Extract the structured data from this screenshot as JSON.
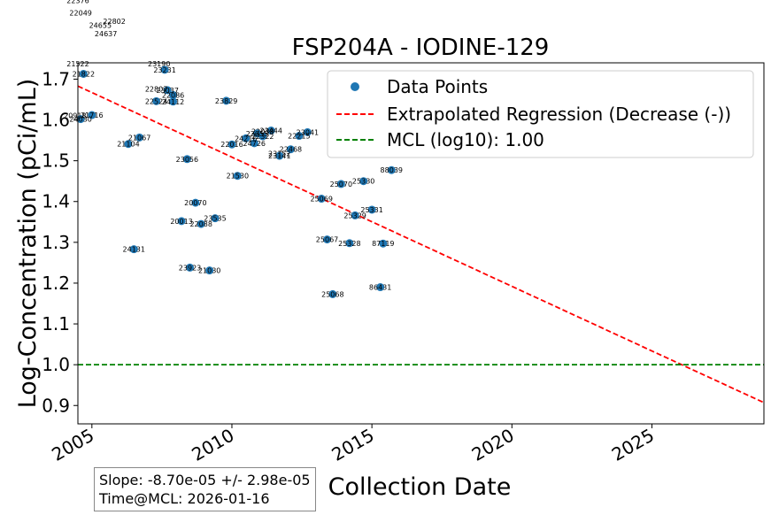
{
  "chart_data": {
    "type": "scatter",
    "title": "FSP204A - IODINE-129",
    "xlabel": "Collection Date",
    "ylabel": "Log-Concentration (pCi/mL)",
    "xlim": [
      2004.5,
      2029.0
    ],
    "ylim": [
      0.855,
      1.74
    ],
    "x_ticks": [
      2005,
      2010,
      2015,
      2020,
      2025
    ],
    "x_tick_labels": [
      "2005",
      "2010",
      "2015",
      "2020",
      "2025"
    ],
    "y_ticks": [
      0.9,
      1.0,
      1.1,
      1.2,
      1.3,
      1.4,
      1.5,
      1.6,
      1.7
    ],
    "y_tick_labels": [
      "0.9",
      "1.0",
      "1.1",
      "1.2",
      "1.3",
      "1.4",
      "1.5",
      "1.6",
      "1.7"
    ],
    "legend": {
      "placement": "top-right",
      "entries": [
        "Data Points",
        "Extrapolated Regression (Decrease (-))",
        "MCL (log10): 1.00"
      ]
    },
    "regression": {
      "x": [
        2004.5,
        2029.0
      ],
      "y": [
        1.683,
        0.907
      ]
    },
    "mcl": 1.0,
    "series": [
      {
        "name": "Data Points",
        "points": [
          {
            "x": 2004.7,
            "y": 1.713,
            "label": "21822"
          },
          {
            "x": 2004.6,
            "y": 1.602,
            "label": "24030"
          },
          {
            "x": 2005.0,
            "y": 1.612,
            "label": "21716"
          },
          {
            "x": 2006.3,
            "y": 1.541,
            "label": "21104"
          },
          {
            "x": 2006.7,
            "y": 1.557,
            "label": "21067"
          },
          {
            "x": 2006.5,
            "y": 1.283,
            "label": "24131"
          },
          {
            "x": 2007.3,
            "y": 1.646,
            "label": "22524"
          },
          {
            "x": 2007.7,
            "y": 1.673,
            "label": "23037"
          },
          {
            "x": 2007.9,
            "y": 1.661,
            "label": "22086"
          },
          {
            "x": 2007.9,
            "y": 1.645,
            "label": "24112"
          },
          {
            "x": 2007.6,
            "y": 1.723,
            "label": "23231"
          },
          {
            "x": 2008.4,
            "y": 1.504,
            "label": "23056"
          },
          {
            "x": 2008.7,
            "y": 1.397,
            "label": "20070"
          },
          {
            "x": 2008.2,
            "y": 1.352,
            "label": "20013"
          },
          {
            "x": 2008.9,
            "y": 1.345,
            "label": "22088"
          },
          {
            "x": 2009.4,
            "y": 1.359,
            "label": "23535"
          },
          {
            "x": 2008.5,
            "y": 1.238,
            "label": "23923"
          },
          {
            "x": 2009.2,
            "y": 1.231,
            "label": "21030"
          },
          {
            "x": 2009.8,
            "y": 1.647,
            "label": "23829"
          },
          {
            "x": 2010.0,
            "y": 1.54,
            "label": "22016"
          },
          {
            "x": 2010.2,
            "y": 1.463,
            "label": "21530"
          },
          {
            "x": 2010.5,
            "y": 1.555,
            "label": "24216"
          },
          {
            "x": 2010.8,
            "y": 1.543,
            "label": "24726"
          },
          {
            "x": 2010.9,
            "y": 1.567,
            "label": "22055"
          },
          {
            "x": 2011.1,
            "y": 1.56,
            "label": "22322"
          },
          {
            "x": 2011.4,
            "y": 1.574,
            "label": "23444"
          },
          {
            "x": 2011.7,
            "y": 1.512,
            "label": "23141"
          },
          {
            "x": 2012.1,
            "y": 1.528,
            "label": "22468"
          },
          {
            "x": 2012.4,
            "y": 1.561,
            "label": "22215"
          },
          {
            "x": 2012.7,
            "y": 1.57,
            "label": "23041"
          },
          {
            "x": 2013.2,
            "y": 1.407,
            "label": "25069"
          },
          {
            "x": 2013.4,
            "y": 1.307,
            "label": "25067"
          },
          {
            "x": 2013.6,
            "y": 1.173,
            "label": "25068"
          },
          {
            "x": 2013.9,
            "y": 1.443,
            "label": "25070"
          },
          {
            "x": 2014.2,
            "y": 1.298,
            "label": "25328"
          },
          {
            "x": 2014.4,
            "y": 1.366,
            "label": "25329"
          },
          {
            "x": 2014.7,
            "y": 1.45,
            "label": "25330"
          },
          {
            "x": 2015.0,
            "y": 1.38,
            "label": "25331"
          },
          {
            "x": 2015.3,
            "y": 1.19,
            "label": "86431"
          },
          {
            "x": 2015.4,
            "y": 1.297,
            "label": "87119"
          },
          {
            "x": 2015.7,
            "y": 1.477,
            "label": "88039"
          }
        ]
      }
    ],
    "overflow_labels": [
      {
        "x": 2004.5,
        "y": 1.893,
        "label": "22376"
      },
      {
        "x": 2004.6,
        "y": 1.863,
        "label": "22049"
      },
      {
        "x": 2005.8,
        "y": 1.842,
        "label": "22802"
      },
      {
        "x": 2005.3,
        "y": 1.832,
        "label": "24655"
      },
      {
        "x": 2005.5,
        "y": 1.812,
        "label": "24637"
      },
      {
        "x": 2004.5,
        "y": 1.738,
        "label": "21522"
      },
      {
        "x": 2007.4,
        "y": 1.738,
        "label": "23190"
      },
      {
        "x": 2004.4,
        "y": 1.611,
        "label": "20918"
      },
      {
        "x": 2007.3,
        "y": 1.676,
        "label": "22807"
      },
      {
        "x": 2011.1,
        "y": 1.572,
        "label": "22038"
      },
      {
        "x": 2011.7,
        "y": 1.518,
        "label": "23152"
      }
    ]
  },
  "stats": {
    "slope": "Slope: -8.70e-05 +/- 2.98e-05",
    "time_at_mcl": "Time@MCL: 2026-01-16"
  },
  "colors": {
    "points": "#1f77b4",
    "regression": "#ff0000",
    "mcl": "#008000"
  }
}
